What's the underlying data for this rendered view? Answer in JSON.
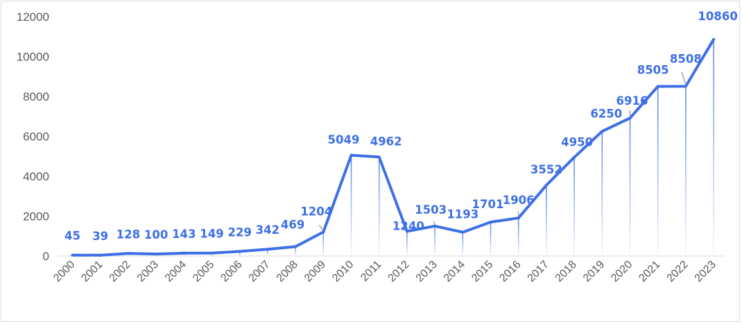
{
  "chart_data": {
    "type": "line",
    "title": "",
    "xlabel": "",
    "ylabel": "",
    "ylim": [
      0,
      12000
    ],
    "yticks": [
      0,
      2000,
      4000,
      6000,
      8000,
      10000,
      12000
    ],
    "grid": false,
    "legend": "none",
    "categories": [
      "2000",
      "2001",
      "2002",
      "2003",
      "2004",
      "2005",
      "2006",
      "2007",
      "2008",
      "2009",
      "2010",
      "2011",
      "2012",
      "2013",
      "2014",
      "2015",
      "2016",
      "2017",
      "2018",
      "2019",
      "2020",
      "2021",
      "2022",
      "2023"
    ],
    "series": [
      {
        "color": "#3d6fe6",
        "values": [
          45,
          39,
          128,
          100,
          143,
          149,
          229,
          342,
          469,
          1204,
          5049,
          4962,
          1240,
          1503,
          1193,
          1701,
          1906,
          3552,
          4950,
          6250,
          6916,
          8505,
          8508,
          10860
        ]
      }
    ],
    "data_labels": true,
    "drop_lines": true
  }
}
